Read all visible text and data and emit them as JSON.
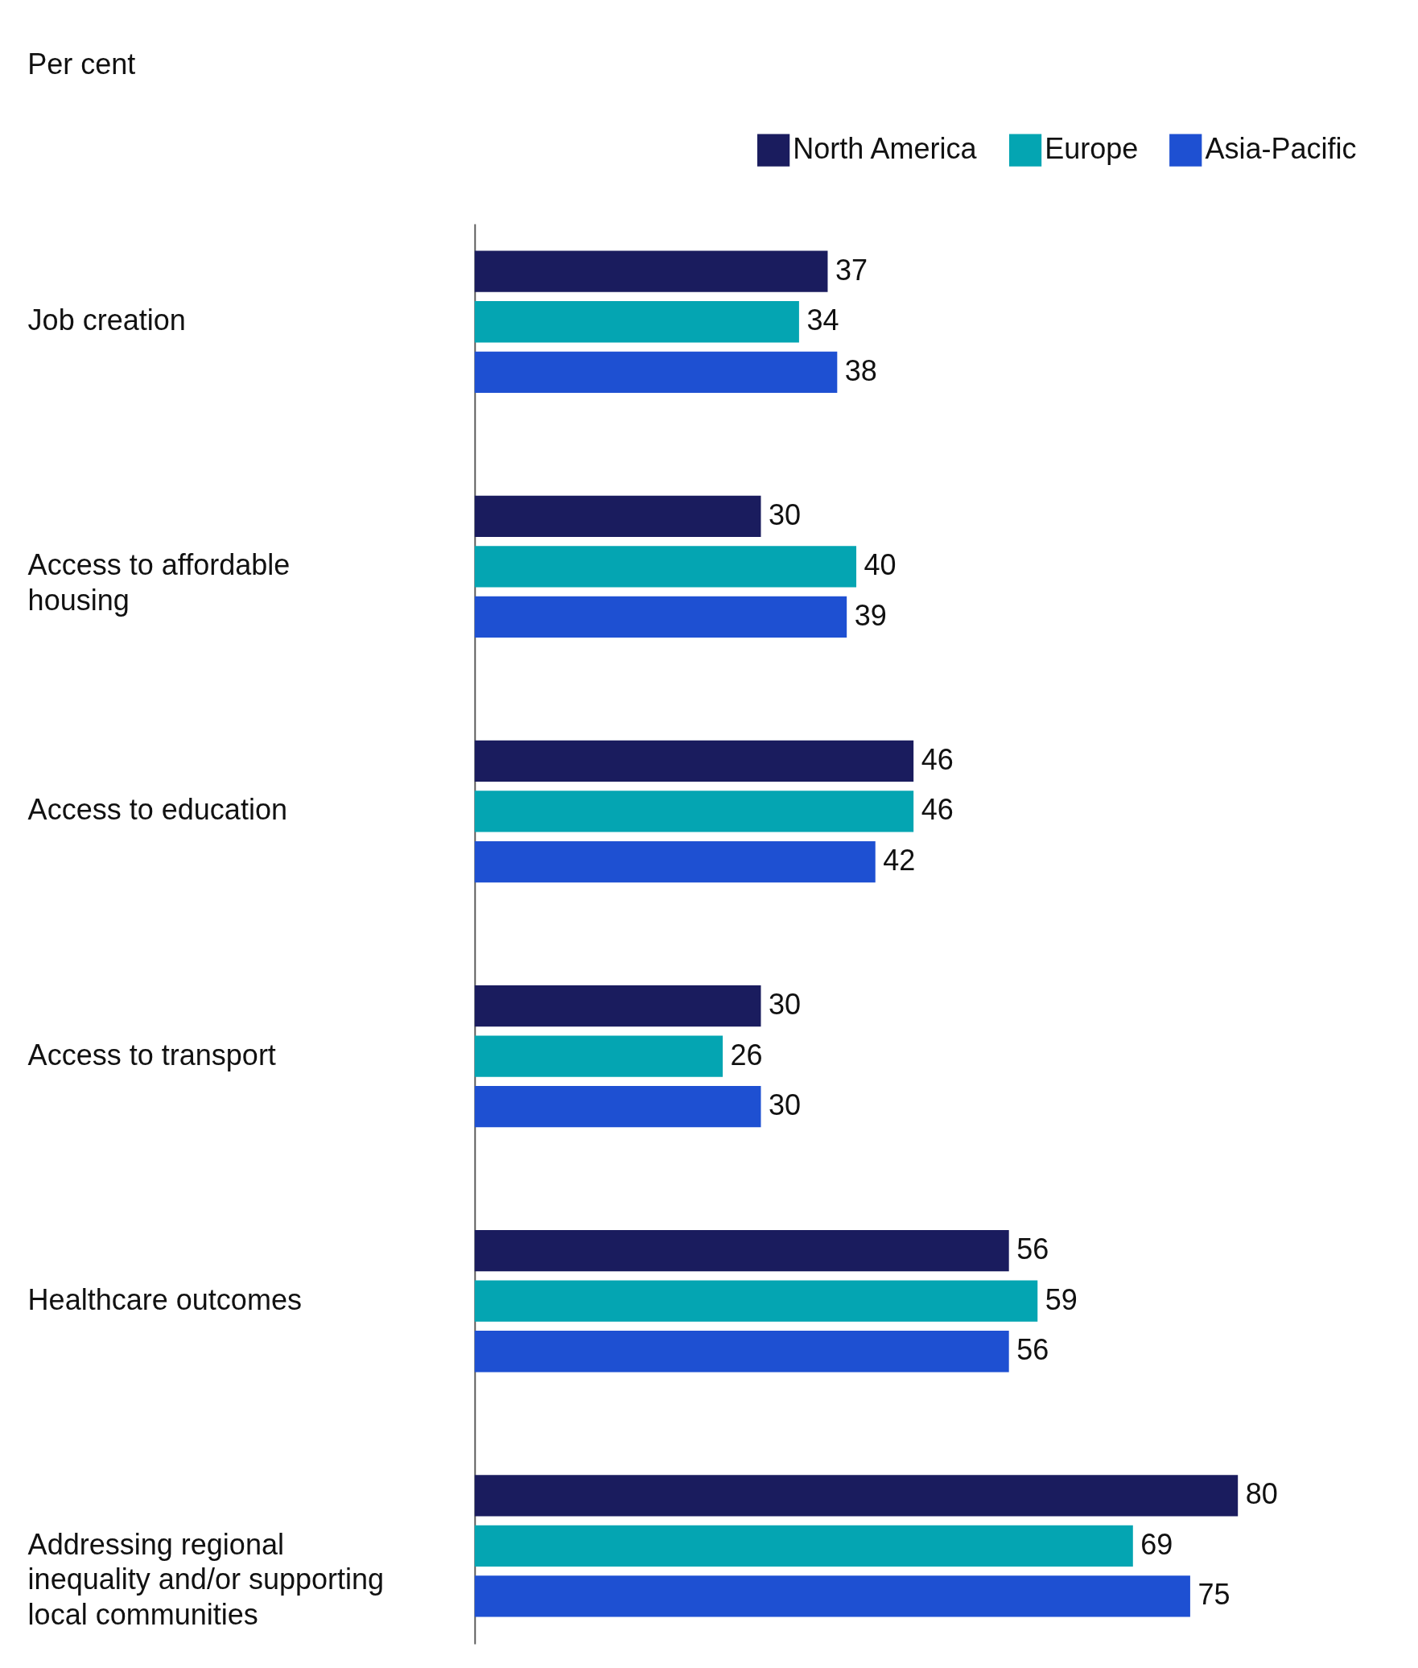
{
  "chart_data": {
    "type": "bar",
    "orientation": "horizontal",
    "annotations": [
      "Per cent"
    ],
    "categories": [
      "Job creation",
      "Access to affordable housing",
      "Access to education",
      "Access to transport",
      "Healthcare outcomes",
      "Addressing regional inequality and/or supporting local communities"
    ],
    "series": [
      {
        "name": "North America",
        "color": "#1a1c5e",
        "values": [
          37,
          30,
          46,
          30,
          56,
          80
        ]
      },
      {
        "name": "Europe",
        "color": "#04a5b2",
        "values": [
          34,
          40,
          46,
          26,
          59,
          69
        ]
      },
      {
        "name": "Asia-Pacific",
        "color": "#1e50d2",
        "values": [
          38,
          39,
          42,
          30,
          56,
          75
        ]
      }
    ],
    "data_labels": true,
    "legend": "top right",
    "grid": false,
    "tick_labels": "y"
  }
}
